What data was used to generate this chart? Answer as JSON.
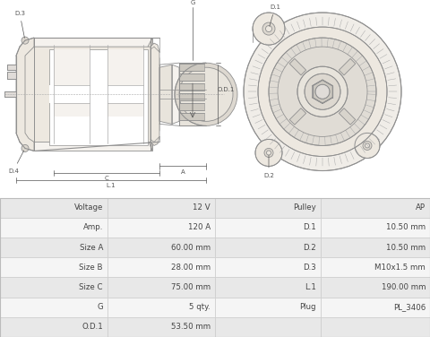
{
  "table_rows": [
    [
      "Voltage",
      "12 V",
      "Pulley",
      "AP"
    ],
    [
      "Amp.",
      "120 A",
      "D.1",
      "10.50 mm"
    ],
    [
      "Size A",
      "60.00 mm",
      "D.2",
      "10.50 mm"
    ],
    [
      "Size B",
      "28.00 mm",
      "D.3",
      "M10x1.5 mm"
    ],
    [
      "Size C",
      "75.00 mm",
      "L.1",
      "190.00 mm"
    ],
    [
      "G",
      "5 qty.",
      "Plug",
      "PL_3406"
    ],
    [
      "O.D.1",
      "53.50 mm",
      "",
      ""
    ]
  ],
  "bg_color": "#ffffff",
  "table_row_colors": [
    "#e8e8e8",
    "#f5f5f5"
  ],
  "table_border": "#cccccc",
  "lc": "#909090",
  "lc2": "#aaaaaa",
  "lbl": "#555555",
  "lfs": 5.0
}
